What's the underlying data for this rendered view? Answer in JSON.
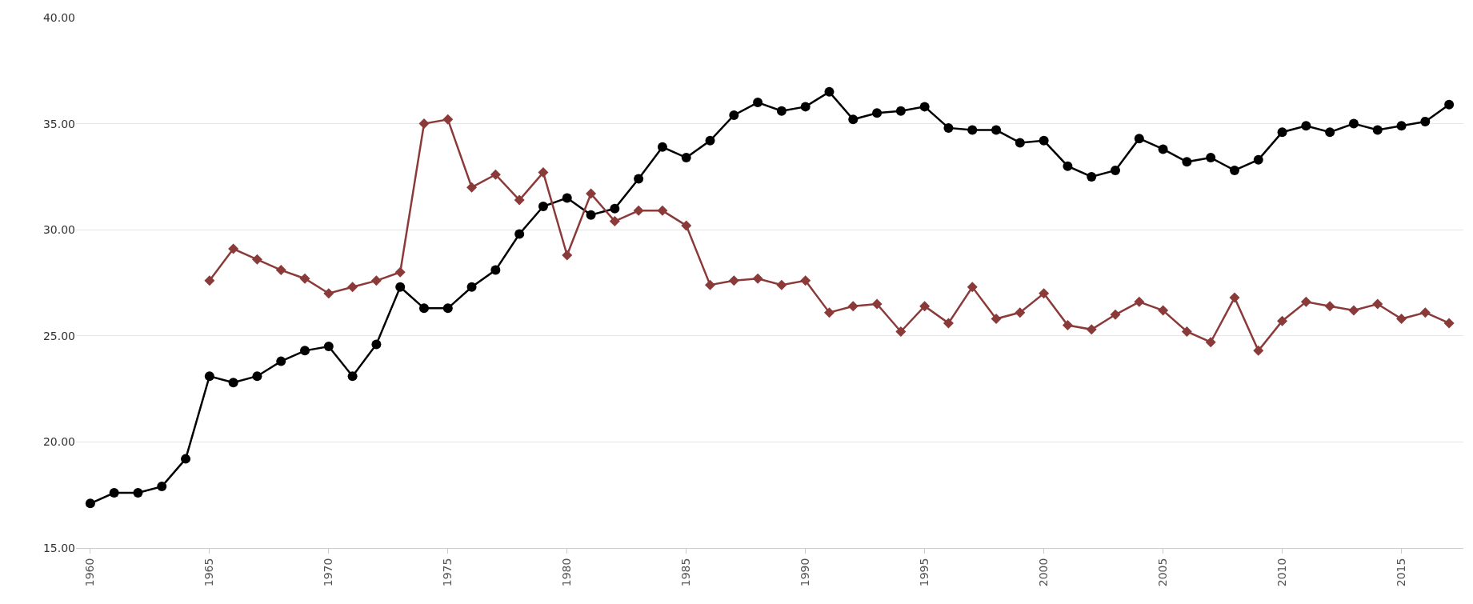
{
  "chart_data": {
    "type": "line",
    "grid": "y",
    "xlim": [
      1959.4,
      2017.6
    ],
    "xticks": [
      1960,
      1965,
      1970,
      1975,
      1980,
      1985,
      1990,
      1995,
      2000,
      2005,
      2010,
      2015
    ],
    "ylim": [
      15,
      40
    ],
    "yticks": [
      {
        "value": 15,
        "label": "15.00"
      },
      {
        "value": 20,
        "label": "20.00"
      },
      {
        "value": 25,
        "label": "25.00"
      },
      {
        "value": 30,
        "label": "30.00"
      },
      {
        "value": 35,
        "label": "35.00"
      },
      {
        "value": 40,
        "label": "40.00"
      }
    ],
    "series": [
      {
        "color": "#000000",
        "marker": "circle",
        "x": [
          1960,
          1961,
          1962,
          1963,
          1964,
          1965,
          1966,
          1967,
          1968,
          1969,
          1970,
          1971,
          1972,
          1973,
          1974,
          1975,
          1976,
          1977,
          1978,
          1979,
          1980,
          1981,
          1982,
          1983,
          1984,
          1985,
          1986,
          1987,
          1988,
          1989,
          1990,
          1991,
          1992,
          1993,
          1994,
          1995,
          1996,
          1997,
          1998,
          1999,
          2000,
          2001,
          2002,
          2003,
          2004,
          2005,
          2006,
          2007,
          2008,
          2009,
          2010,
          2011,
          2012,
          2013,
          2014,
          2015,
          2016,
          2017
        ],
        "values": [
          17.1,
          17.6,
          17.6,
          17.9,
          19.2,
          23.1,
          22.8,
          23.1,
          23.8,
          24.3,
          24.5,
          23.1,
          24.6,
          27.3,
          26.3,
          26.3,
          27.3,
          28.1,
          29.8,
          31.1,
          31.5,
          30.7,
          31.0,
          32.4,
          33.9,
          33.4,
          34.2,
          35.4,
          36.0,
          35.6,
          35.8,
          36.5,
          35.2,
          35.5,
          35.6,
          35.8,
          34.8,
          34.7,
          34.7,
          34.1,
          34.2,
          33.0,
          32.5,
          32.8,
          34.3,
          33.8,
          33.2,
          33.4,
          32.8,
          33.3,
          34.6,
          34.9,
          34.6,
          35.0,
          34.7,
          34.9,
          35.1,
          35.9
        ]
      },
      {
        "color": "#8b3a3a",
        "marker": "diamond",
        "x": [
          1965,
          1966,
          1967,
          1968,
          1969,
          1970,
          1971,
          1972,
          1973,
          1974,
          1975,
          1976,
          1977,
          1978,
          1979,
          1980,
          1981,
          1982,
          1983,
          1984,
          1985,
          1986,
          1987,
          1988,
          1989,
          1990,
          1991,
          1992,
          1993,
          1994,
          1995,
          1996,
          1997,
          1998,
          1999,
          2000,
          2001,
          2002,
          2003,
          2004,
          2005,
          2006,
          2007,
          2008,
          2009,
          2010,
          2011,
          2012,
          2013,
          2014,
          2015,
          2016,
          2017
        ],
        "values": [
          27.6,
          29.1,
          28.6,
          28.1,
          27.7,
          27.0,
          27.3,
          27.6,
          28.0,
          35.0,
          35.2,
          32.0,
          32.6,
          31.4,
          32.7,
          28.8,
          31.7,
          30.4,
          30.9,
          30.9,
          30.2,
          27.4,
          27.6,
          27.7,
          27.4,
          27.6,
          26.1,
          26.4,
          26.5,
          25.2,
          26.4,
          25.6,
          27.3,
          25.8,
          26.1,
          27.0,
          25.5,
          25.3,
          26.0,
          26.6,
          26.2,
          25.2,
          24.7,
          26.8,
          24.3,
          25.7,
          26.6,
          26.4,
          26.2,
          26.5,
          25.8,
          26.1,
          25.6
        ]
      }
    ]
  }
}
